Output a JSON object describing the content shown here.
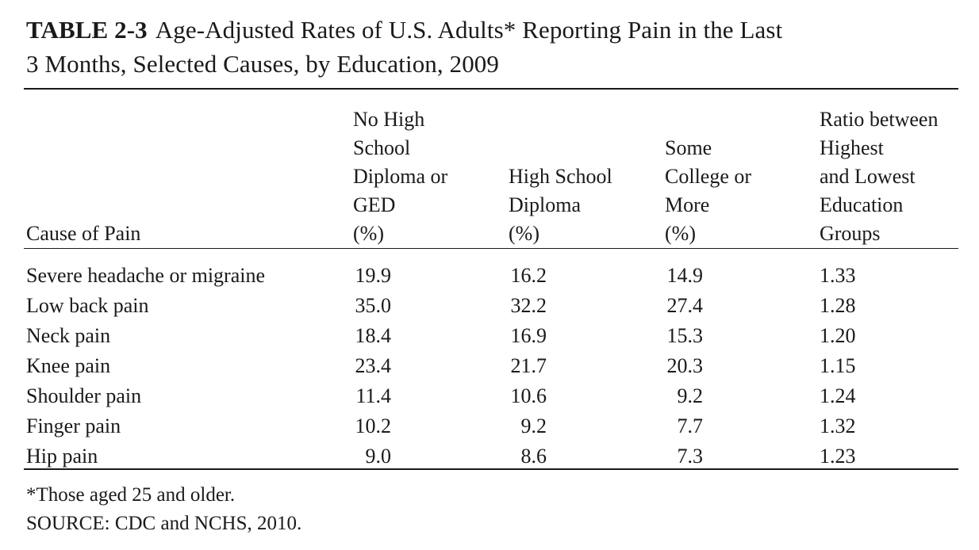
{
  "table": {
    "label": "TABLE 2-3",
    "title_line1": "Age-Adjusted Rates of U.S. Adults* Reporting Pain in the Last",
    "title_line2": "3 Months, Selected Causes, by Education, 2009",
    "headers": {
      "cause": "Cause of Pain",
      "no_hs": "No High\nSchool\nDiploma or\nGED\n(%)",
      "hs": "High School\nDiploma\n(%)",
      "college": "Some\nCollege or\nMore\n(%)",
      "ratio": "Ratio between\nHighest\nand Lowest\nEducation\nGroups"
    },
    "rows": [
      {
        "cause": "Severe headache or migraine",
        "no_hs": "19.9",
        "hs": "16.2",
        "college": "14.9",
        "ratio": "1.33"
      },
      {
        "cause": "Low back pain",
        "no_hs": "35.0",
        "hs": "32.2",
        "college": "27.4",
        "ratio": "1.28"
      },
      {
        "cause": "Neck pain",
        "no_hs": "18.4",
        "hs": "16.9",
        "college": "15.3",
        "ratio": "1.20"
      },
      {
        "cause": "Knee pain",
        "no_hs": "23.4",
        "hs": "21.7",
        "college": "20.3",
        "ratio": "1.15"
      },
      {
        "cause": "Shoulder pain",
        "no_hs": "11.4",
        "hs": "10.6",
        "college": "9.2",
        "ratio": "1.24"
      },
      {
        "cause": "Finger pain",
        "no_hs": "10.2",
        "hs": "9.2",
        "college": "7.7",
        "ratio": "1.32"
      },
      {
        "cause": "Hip pain",
        "no_hs": "9.0",
        "hs": "8.6",
        "college": "7.3",
        "ratio": "1.23"
      }
    ],
    "footnote": "*Those aged 25 and older.",
    "source": "SOURCE: CDC and NCHS, 2010."
  }
}
